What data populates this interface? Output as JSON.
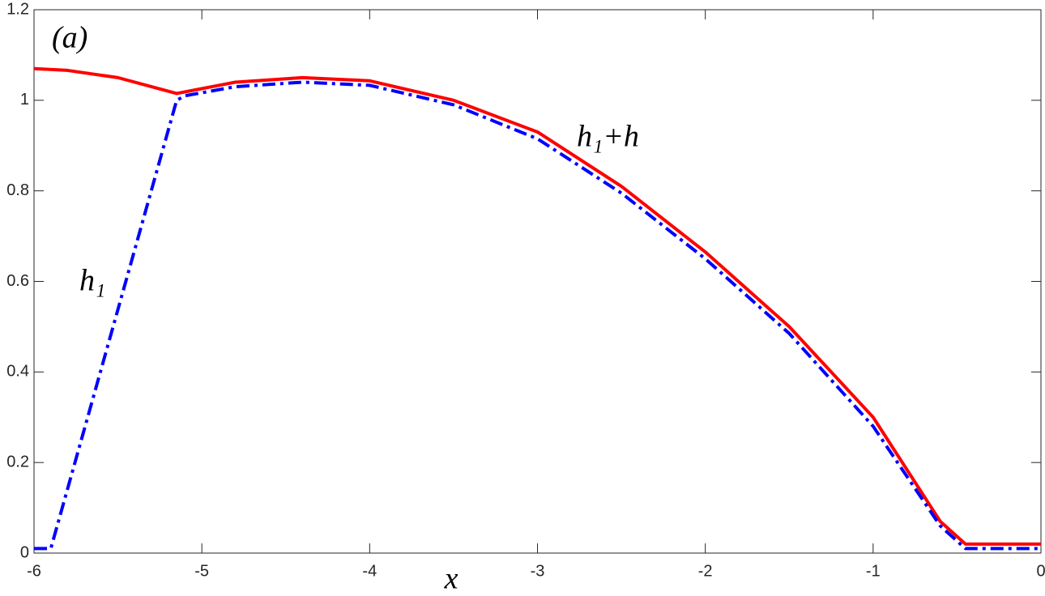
{
  "chart_data": {
    "type": "line",
    "annotations": [
      "(a)",
      "h₁+h",
      "h₁"
    ],
    "x_label": "x",
    "series": [
      {
        "color": "#ff0000",
        "style": "solid",
        "x": [
          -6,
          -5.8,
          -5.5,
          -5.15,
          -4.8,
          -4.4,
          -4,
          -3.5,
          -3,
          -2.5,
          -2,
          -1.5,
          -1,
          -0.6,
          -0.45,
          0
        ],
        "values": [
          1.07,
          1.066,
          1.05,
          1.015,
          1.04,
          1.05,
          1.043,
          1.0,
          0.93,
          0.81,
          0.665,
          0.5,
          0.3,
          0.07,
          0.02,
          0.02
        ]
      },
      {
        "color": "#0000ff",
        "style": "dashdot",
        "x": [
          -6,
          -5.9,
          -5.15,
          -5.1,
          -4.8,
          -4.4,
          -4,
          -3.5,
          -3,
          -2.5,
          -2,
          -1.5,
          -1,
          -0.6,
          -0.45,
          0
        ],
        "values": [
          0.01,
          0.01,
          1.0,
          1.01,
          1.03,
          1.04,
          1.033,
          0.99,
          0.915,
          0.795,
          0.65,
          0.485,
          0.28,
          0.06,
          0.01,
          0.01
        ]
      }
    ],
    "xlim": [
      -6,
      0
    ],
    "xticks": [
      -6,
      -5,
      -4,
      -3,
      -2,
      -1,
      0
    ],
    "ylim": [
      0,
      1.2
    ],
    "yticks": [
      0,
      0.2,
      0.4,
      0.6,
      0.8,
      1,
      1.2
    ],
    "grid": false
  }
}
